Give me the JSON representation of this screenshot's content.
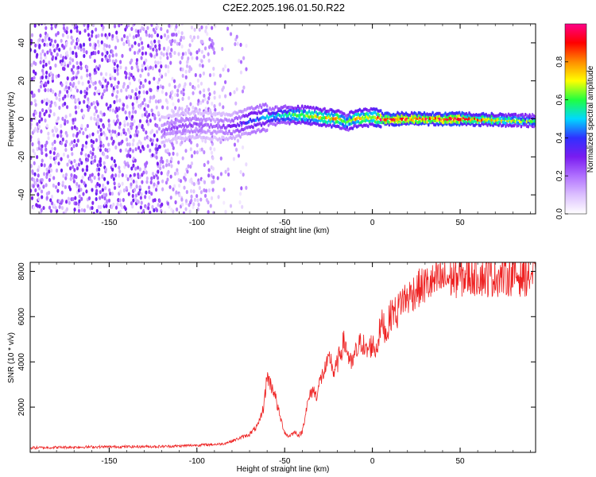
{
  "title": "C2E2.2025.196.01.50.R22",
  "chart_data": [
    {
      "type": "heatmap",
      "xlabel": "Height of straight line (km)",
      "ylabel": "Frequency (Hz)",
      "xlim": [
        -195,
        93
      ],
      "ylim": [
        -50,
        50
      ],
      "xticks": [
        -150,
        -100,
        -50,
        0,
        50
      ],
      "yticks": [
        -40,
        -20,
        0,
        20,
        40
      ],
      "colorbar": {
        "label": "Normalized spectral amplitude",
        "range": [
          0,
          1
        ],
        "ticks": [
          0.0,
          0.2,
          0.4,
          0.6,
          0.8
        ],
        "colors": [
          "#ffffff",
          "#dcc0ff",
          "#b070ff",
          "#7a1cf0",
          "#3030ff",
          "#00d8ff",
          "#20ff40",
          "#ffff00",
          "#ff8c00",
          "#ff0000",
          "#ff0088"
        ]
      },
      "track": {
        "x": [
          -120,
          -110,
          -100,
          -90,
          -80,
          -70,
          -60,
          -50,
          -40,
          -30,
          -20,
          -15,
          -10,
          0,
          5,
          20,
          50,
          93
        ],
        "freq": [
          -6,
          -4,
          -3,
          -4,
          -4,
          -1,
          1,
          2,
          2,
          1,
          0,
          -2,
          0,
          1,
          0,
          0,
          0,
          -1
        ],
        "amp": [
          0.22,
          0.25,
          0.25,
          0.22,
          0.28,
          0.4,
          0.5,
          0.55,
          0.7,
          0.7,
          0.8,
          0.6,
          0.75,
          0.75,
          0.92,
          0.92,
          0.92,
          0.6
        ]
      }
    },
    {
      "type": "line",
      "xlabel": "Height of straight line (km)",
      "ylabel": "SNR (10 * v/v)",
      "xlim": [
        -195,
        93
      ],
      "ylim": [
        0,
        8400
      ],
      "xticks": [
        -150,
        -100,
        -50,
        0,
        50
      ],
      "yticks": [
        2000,
        4000,
        6000,
        8000
      ],
      "color": "#ee2222",
      "x": [
        -195,
        -180,
        -160,
        -140,
        -120,
        -110,
        -100,
        -90,
        -85,
        -80,
        -75,
        -70,
        -65,
        -62,
        -60,
        -58,
        -56,
        -54,
        -52,
        -50,
        -48,
        -46,
        -44,
        -42,
        -40,
        -38,
        -36,
        -34,
        -32,
        -30,
        -28,
        -26,
        -24,
        -22,
        -20,
        -18,
        -16,
        -14,
        -12,
        -10,
        -8,
        -6,
        -4,
        -2,
        0,
        2,
        4,
        6,
        8,
        10,
        12,
        14,
        16,
        18,
        20,
        22,
        25,
        28,
        30,
        35,
        40,
        45,
        50,
        55,
        60,
        65,
        70,
        75,
        80,
        85,
        90,
        93
      ],
      "y": [
        200,
        220,
        240,
        250,
        260,
        280,
        320,
        350,
        380,
        500,
        650,
        800,
        1200,
        2000,
        3400,
        3000,
        2700,
        2000,
        1400,
        900,
        700,
        800,
        900,
        750,
        900,
        1800,
        2400,
        2800,
        2500,
        3100,
        3500,
        3800,
        4200,
        3500,
        3900,
        4500,
        4900,
        4400,
        3800,
        4300,
        4600,
        5000,
        4400,
        4600,
        4800,
        4500,
        5300,
        5800,
        5200,
        6000,
        6300,
        6100,
        6700,
        6800,
        6800,
        7000,
        7200,
        7300,
        7400,
        7500,
        7650,
        7700,
        7750,
        7800,
        7850,
        7750,
        7800,
        7800,
        7850,
        7800,
        7850,
        7800
      ]
    }
  ]
}
